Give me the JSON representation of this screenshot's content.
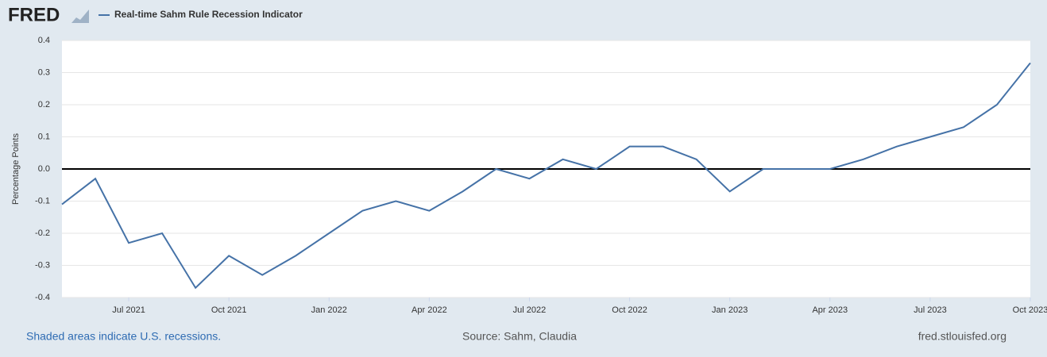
{
  "logo": "FRED",
  "chart_data": {
    "type": "line",
    "series": [
      {
        "name": "Real-time Sahm Rule Recession Indicator",
        "color": "#4572a7",
        "values": [
          -0.11,
          -0.03,
          -0.23,
          -0.2,
          -0.37,
          -0.27,
          -0.33,
          -0.27,
          -0.2,
          -0.13,
          -0.1,
          -0.13,
          -0.07,
          0.0,
          -0.03,
          0.03,
          0.0,
          0.07,
          0.07,
          0.03,
          -0.07,
          0.0,
          0.0,
          0.0,
          0.03,
          0.07,
          0.1,
          0.13,
          0.2,
          0.33
        ]
      }
    ],
    "x": [
      "2021-05",
      "2021-06",
      "2021-07",
      "2021-08",
      "2021-09",
      "2021-10",
      "2021-11",
      "2021-12",
      "2022-01",
      "2022-02",
      "2022-03",
      "2022-04",
      "2022-05",
      "2022-06",
      "2022-07",
      "2022-08",
      "2022-09",
      "2022-10",
      "2022-11",
      "2022-12",
      "2023-01",
      "2023-02",
      "2023-03",
      "2023-04",
      "2023-05",
      "2023-06",
      "2023-07",
      "2023-08",
      "2023-09",
      "2023-10"
    ],
    "xlim": [
      "2021-05",
      "2023-10"
    ],
    "xticks": [
      {
        "value": "2021-07",
        "label": "Jul 2021"
      },
      {
        "value": "2021-10",
        "label": "Oct 2021"
      },
      {
        "value": "2022-01",
        "label": "Jan 2022"
      },
      {
        "value": "2022-04",
        "label": "Apr 2022"
      },
      {
        "value": "2022-07",
        "label": "Jul 2022"
      },
      {
        "value": "2022-10",
        "label": "Oct 2022"
      },
      {
        "value": "2023-01",
        "label": "Jan 2023"
      },
      {
        "value": "2023-04",
        "label": "Apr 2023"
      },
      {
        "value": "2023-07",
        "label": "Jul 2023"
      },
      {
        "value": "2023-10",
        "label": "Oct 2023"
      }
    ],
    "ylim": [
      -0.4,
      0.4
    ],
    "yticks": [
      -0.4,
      -0.3,
      -0.2,
      -0.1,
      {
        "value": 0,
        "label": "0.0"
      },
      0.1,
      0.2,
      0.3,
      0.4
    ],
    "ylabel": "Percentage Points",
    "grid": true,
    "notes": {
      "recessions": "Shaded areas indicate U.S. recessions.",
      "source": "Source: Sahm, Claudia",
      "site": "fred.stlouisfed.org"
    }
  }
}
